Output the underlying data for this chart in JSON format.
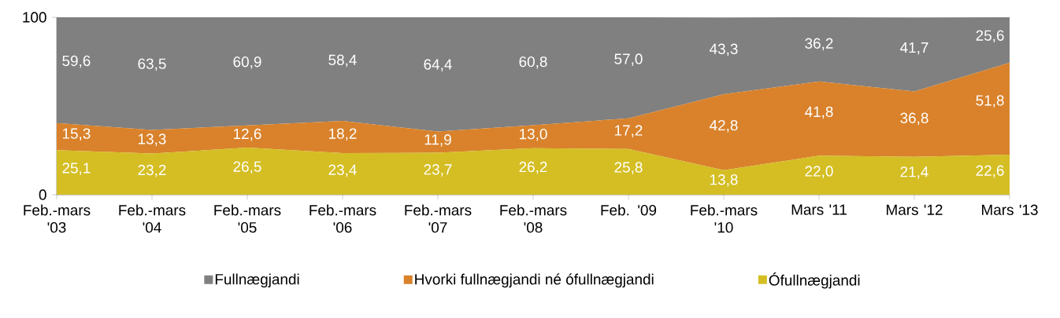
{
  "chart_data": {
    "type": "area",
    "stacked": true,
    "legend": "bottom",
    "categories": [
      "Feb.-mars '03",
      "Feb.-mars '04",
      "Feb.-mars '05",
      "Feb.-mars '06",
      "Feb.-mars '07",
      "Feb.-mars '08",
      "Feb. '09",
      "Feb.-mars '10",
      "Mars '11",
      "Mars '12",
      "Mars '13"
    ],
    "ylim": [
      0,
      100
    ],
    "yticks": [
      0,
      100
    ],
    "series": [
      {
        "name": "Ófullnægjandi",
        "color": "#d4be24",
        "values": [
          25.1,
          23.2,
          26.5,
          23.4,
          23.7,
          26.2,
          25.8,
          13.8,
          22.0,
          21.4,
          22.6
        ],
        "value_labels": [
          "25,1",
          "23,2",
          "26,5",
          "23,4",
          "23,7",
          "26,2",
          "25,8",
          "13,8",
          "22,0",
          "21,4",
          "22,6"
        ]
      },
      {
        "name": "Hvorki fullnægjandi né ófullnægjandi",
        "color": "#d9822b",
        "values": [
          15.3,
          13.3,
          12.6,
          18.2,
          11.9,
          13.0,
          17.2,
          42.8,
          41.8,
          36.8,
          51.8
        ],
        "value_labels": [
          "15,3",
          "13,3",
          "12,6",
          "18,2",
          "11,9",
          "13,0",
          "17,2",
          "42,8",
          "41,8",
          "36,8",
          "51,8"
        ]
      },
      {
        "name": "Fullnægjandi",
        "color": "#808080",
        "values": [
          59.6,
          63.5,
          60.9,
          58.4,
          64.4,
          60.8,
          57.0,
          43.3,
          36.2,
          41.7,
          25.6
        ],
        "value_labels": [
          "59,6",
          "63,5",
          "60,9",
          "58,4",
          "64,4",
          "60,8",
          "57,0",
          "43,3",
          "36,2",
          "41,7",
          "25,6"
        ]
      }
    ]
  }
}
